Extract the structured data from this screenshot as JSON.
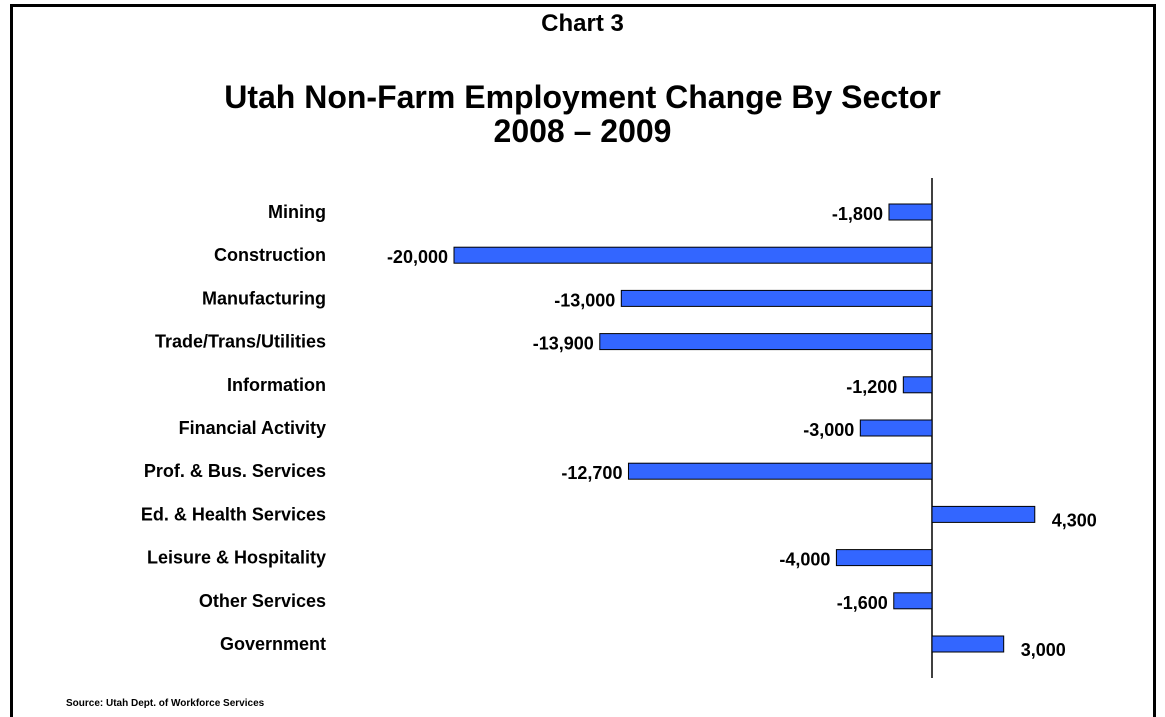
{
  "chart_number": "Chart 3",
  "title_line1": "Utah Non-Farm Employment Change By Sector",
  "title_line2": "2008 – 2009",
  "source": "Source: Utah Dept. of Workforce Services",
  "colors": {
    "bar": "#3366FF",
    "bar_border": "#000000"
  },
  "chart_data": {
    "type": "bar",
    "orientation": "horizontal",
    "title": "Utah Non-Farm Employment Change By Sector 2008 – 2009",
    "categories": [
      "Mining",
      "Construction",
      "Manufacturing",
      "Trade/Trans/Utilities",
      "Information",
      "Financial Activity",
      "Prof. & Bus. Services",
      "Ed. & Health Services",
      "Leisure & Hospitality",
      "Other Services",
      "Government"
    ],
    "values": [
      -1800,
      -20000,
      -13000,
      -13900,
      -1200,
      -3000,
      -12700,
      4300,
      -4000,
      -1600,
      3000
    ],
    "value_labels": [
      "-1,800",
      "-20,000",
      "-13,000",
      "-13,900",
      "-1,200",
      "-3,000",
      "-12,700",
      "4,300",
      "-4,000",
      "-1,600",
      "3,000"
    ],
    "xlim": [
      -20000,
      4300
    ],
    "grid": false,
    "legend": "none"
  }
}
